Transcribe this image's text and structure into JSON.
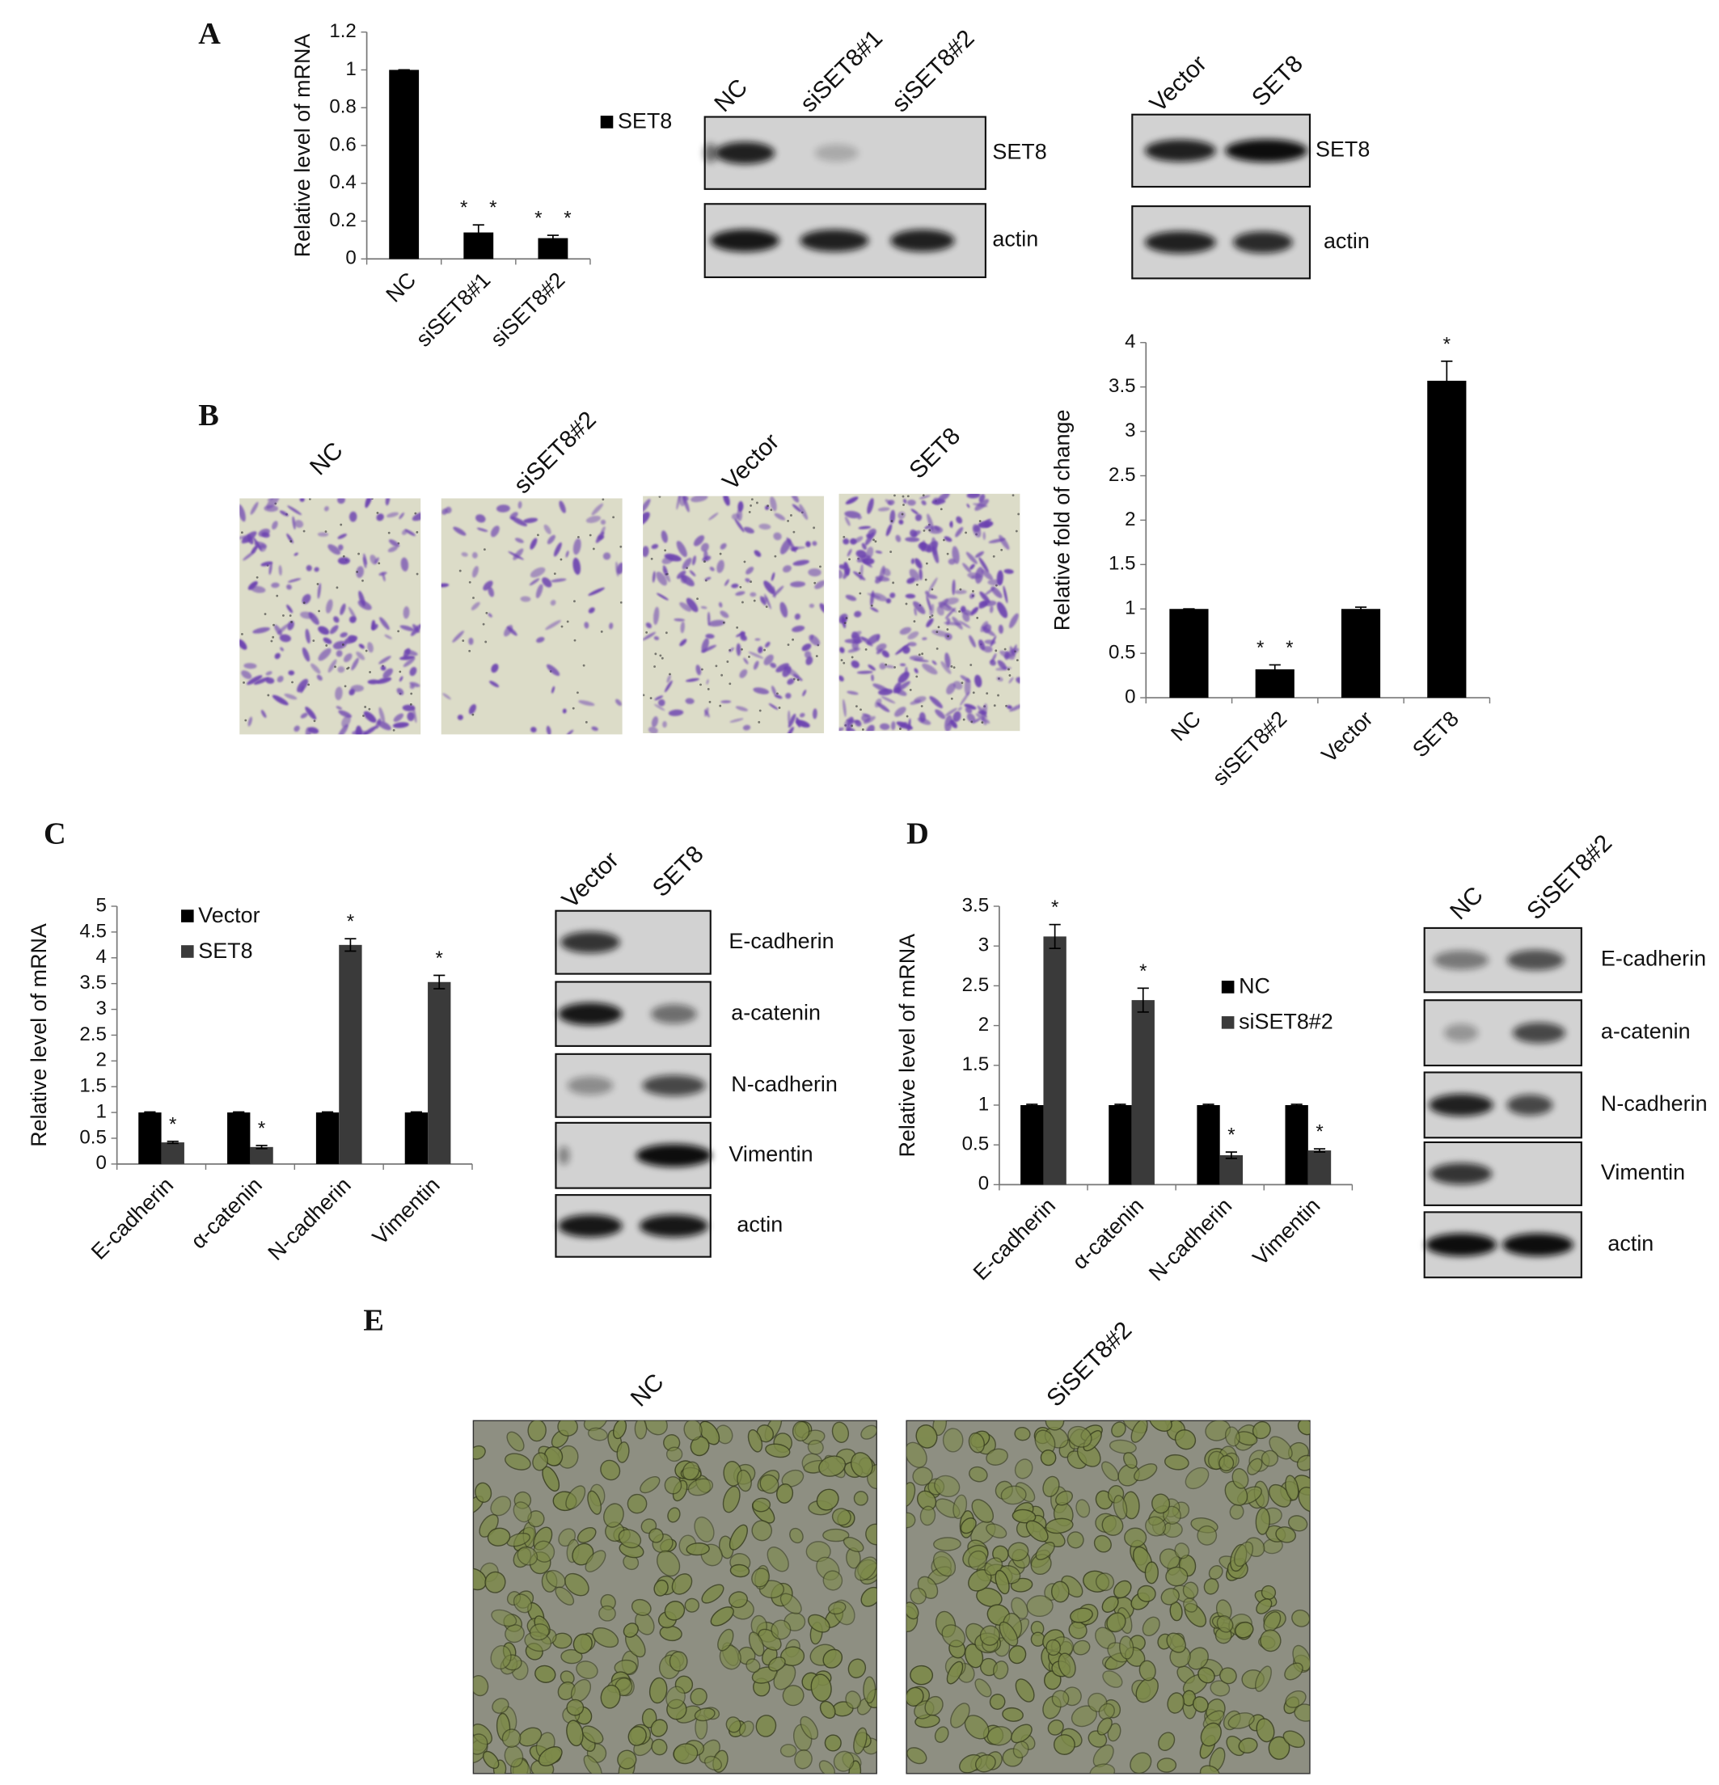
{
  "panel_labels": [
    "A",
    "B",
    "C",
    "D",
    "E"
  ],
  "chart_data": [
    {
      "type": "bar",
      "y_label": "Relative level of mRNA",
      "categories": [
        "NC",
        "siSET8#1",
        "siSET8#2"
      ],
      "series": [
        {
          "name": "SET8",
          "color": "#000000",
          "values": [
            1,
            0.14,
            0.11
          ],
          "errors": [
            0,
            0.04,
            0.015
          ],
          "markers": [
            null,
            "* *",
            "* *"
          ]
        }
      ],
      "ylim": [
        0,
        1.2
      ],
      "yticks": [
        0,
        0.2,
        0.4,
        0.6,
        0.8,
        1,
        1.2
      ],
      "legend": "right"
    },
    {
      "type": "bar",
      "y_label": "Relative fold of change",
      "categories": [
        "NC",
        "siSET8#2",
        "Vector",
        "SET8"
      ],
      "color": "#000000",
      "values": [
        1,
        0.32,
        1,
        3.57
      ],
      "errors": [
        0,
        0.05,
        0.02,
        0.22
      ],
      "markers": [
        null,
        "* *",
        null,
        "*"
      ],
      "ylim": [
        0,
        4
      ],
      "yticks": [
        0,
        0.5,
        1,
        1.5,
        2,
        2.5,
        3,
        3.5,
        4
      ]
    },
    {
      "type": "bar",
      "y_label": "Relative level of mRNA",
      "categories": [
        "E-cadherin",
        "α-catenin",
        "N-cadherin",
        "Vimentin"
      ],
      "series": [
        {
          "name": "Vector",
          "color": "#000000",
          "values": [
            1,
            1,
            1,
            1
          ],
          "errors": [
            0.01,
            0.01,
            0.01,
            0.01
          ],
          "markers": [
            null,
            null,
            null,
            null
          ]
        },
        {
          "name": "SET8",
          "color": "#3a3a3a",
          "values": [
            0.42,
            0.33,
            4.25,
            3.53
          ],
          "errors": [
            0.02,
            0.03,
            0.12,
            0.13
          ],
          "markers": [
            "*",
            "*",
            "*",
            "*"
          ]
        }
      ],
      "ylim": [
        0,
        5
      ],
      "yticks": [
        0,
        0.5,
        1,
        1.5,
        2,
        2.5,
        3,
        3.5,
        4,
        4.5,
        5
      ],
      "legend": "upper left"
    },
    {
      "type": "bar",
      "y_label": "Relative level of mRNA",
      "categories": [
        "E-cadherin",
        "α-catenin",
        "N-cadherin",
        "Vimentin"
      ],
      "series": [
        {
          "name": "NC",
          "color": "#000000",
          "values": [
            1,
            1,
            1,
            1
          ],
          "errors": [
            0.01,
            0.01,
            0.01,
            0.01
          ],
          "markers": [
            null,
            null,
            null,
            null
          ]
        },
        {
          "name": "siSET8#2",
          "color": "#3a3a3a",
          "values": [
            3.12,
            2.32,
            0.37,
            0.43
          ],
          "errors": [
            0.15,
            0.15,
            0.04,
            0.02
          ],
          "markers": [
            "*",
            "*",
            "*",
            "*"
          ]
        }
      ],
      "ylim": [
        0,
        3.5
      ],
      "yticks": [
        0,
        0.5,
        1,
        1.5,
        2,
        2.5,
        3,
        3.5
      ],
      "legend": "center"
    }
  ],
  "blots": [
    {
      "lanes": [
        "NC",
        "siSET8#1",
        "siSET8#2"
      ],
      "bands": [
        "SET8",
        "actin"
      ]
    },
    {
      "lanes": [
        "Vector",
        "SET8"
      ],
      "bands": [
        "SET8",
        "actin"
      ]
    },
    {
      "lanes": [
        "Vector",
        "SET8"
      ],
      "bands": [
        "E-cadherin",
        "a-catenin",
        "N-cadherin",
        "Vimentin",
        "actin"
      ]
    },
    {
      "lanes": [
        "NC",
        "SiSET8#2"
      ],
      "bands": [
        "E-cadherin",
        "a-catenin",
        "N-cadherin",
        "Vimentin",
        "actin"
      ]
    }
  ],
  "micrographs": [
    {
      "labels": [
        "NC",
        "siSET8#2",
        "Vector",
        "SET8"
      ]
    },
    {
      "labels": [
        "NC",
        "SiSET8#2"
      ]
    }
  ]
}
